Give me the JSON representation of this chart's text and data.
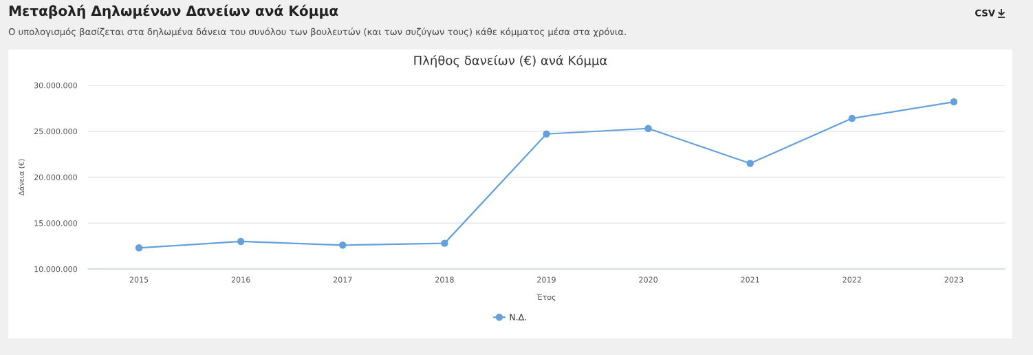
{
  "chart_data": {
    "type": "line",
    "title": "Μεταβολή Δηλωμένων Δανείων ανά Κόμμα",
    "subtitle": "Ο υπολογισμός βασίζεται στα δηλωμένα δάνεια του συνόλου των βουλευτών (και των συζύγων τους) κάθε κόμματος μέσα στα χρόνια.",
    "annotations": [
      "Πλήθος δανείων (€) ανά Κόμμα",
      "CSV"
    ],
    "xlabel": "Έτος",
    "ylabel": "Δάνεια (€)",
    "categories": [
      "2015",
      "2016",
      "2017",
      "2018",
      "2019",
      "2020",
      "2021",
      "2022",
      "2023"
    ],
    "series": [
      {
        "name": "Ν.Δ.",
        "color": "#63a0dc",
        "values": [
          12300000,
          13000000,
          12600000,
          12800000,
          24700000,
          25300000,
          21500000,
          26400000,
          28200000
        ]
      }
    ],
    "ylim": [
      10000000,
      30000000
    ],
    "yticks": [
      {
        "value": 10000000,
        "label": "10.000.000"
      },
      {
        "value": 15000000,
        "label": "15.000.000"
      },
      {
        "value": 20000000,
        "label": "20.000.000"
      },
      {
        "value": 25000000,
        "label": "25.000.000"
      },
      {
        "value": 30000000,
        "label": "30.000.000"
      }
    ],
    "grid": "y",
    "legend": "bottom",
    "marker": "circle",
    "line_style": "solid"
  }
}
